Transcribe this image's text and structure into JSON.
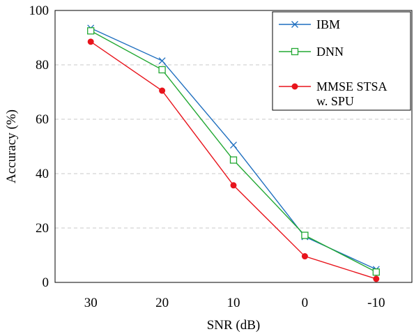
{
  "chart_data": {
    "type": "line",
    "xlabel": "SNR (dB)",
    "ylabel": "Accuracy (%)",
    "categories": [
      "30",
      "20",
      "10",
      "0",
      "-10"
    ],
    "ylim": [
      0,
      100
    ],
    "yticks": [
      "0",
      "20",
      "40",
      "60",
      "80",
      "100"
    ],
    "grid": "horizontal dashed",
    "legend_position": "top-right",
    "series": [
      {
        "name": "IBM",
        "values": [
          93.5,
          81.5,
          50.5,
          16.8,
          4.8
        ],
        "color": "#1f6fbf",
        "marker": "x"
      },
      {
        "name": "DNN",
        "values": [
          92.5,
          78.2,
          45.0,
          17.3,
          3.8
        ],
        "color": "#22a833",
        "marker": "open-square"
      },
      {
        "name": "MMSE STSA w. SPU",
        "legend_lines": [
          "MMSE STSA",
          "w. SPU"
        ],
        "values": [
          88.5,
          70.5,
          35.7,
          9.6,
          1.3
        ],
        "color": "#e8141c",
        "marker": "filled-circle"
      }
    ]
  }
}
